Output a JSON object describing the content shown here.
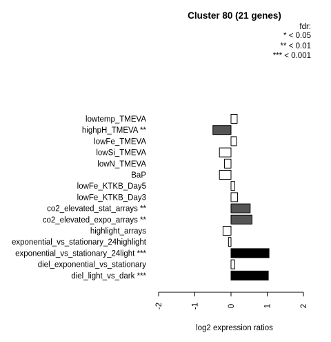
{
  "chart_data": {
    "type": "bar",
    "orientation": "horizontal",
    "title": "Cluster 80 (21 genes)",
    "xlabel": "log2 expression ratios",
    "ylabel": "",
    "xlim": [
      -2,
      2
    ],
    "x_ticks": [
      "-2",
      "-1",
      "0",
      "1",
      "2"
    ],
    "legend": {
      "placement": "top-right",
      "title": "fdr:",
      "entries": [
        "* < 0.05",
        "** < 0.01",
        "*** < 0.001"
      ]
    },
    "categories": [
      "lowtemp_TMEVA",
      "highpH_TMEVA **",
      "lowFe_TMEVA",
      "lowSi_TMEVA",
      "lowN_TMEVA",
      "BaP",
      "lowFe_KTKB_Day5",
      "lowFe_KTKB_Day3",
      "co2_elevated_stat_arrays **",
      "co2_elevated_expo_arrays **",
      "highlight_arrays",
      "exponential_vs_stationary_24highlight",
      "exponential_vs_stationary_24light ***",
      "diel_exponential_vs_stationary",
      "diel_light_vs_dark ***"
    ],
    "values": [
      0.17,
      -0.5,
      0.15,
      -0.32,
      -0.18,
      -0.32,
      0.1,
      0.18,
      0.53,
      0.58,
      -0.22,
      -0.07,
      1.05,
      0.1,
      1.03
    ],
    "significance": [
      "",
      "**",
      "",
      "",
      "",
      "",
      "",
      "",
      "**",
      "**",
      "",
      "",
      "***",
      "",
      "***"
    ],
    "colors": {
      "none": "#ffffff",
      "**": "#555555",
      "***": "#000000",
      "stroke": "#000000"
    }
  }
}
